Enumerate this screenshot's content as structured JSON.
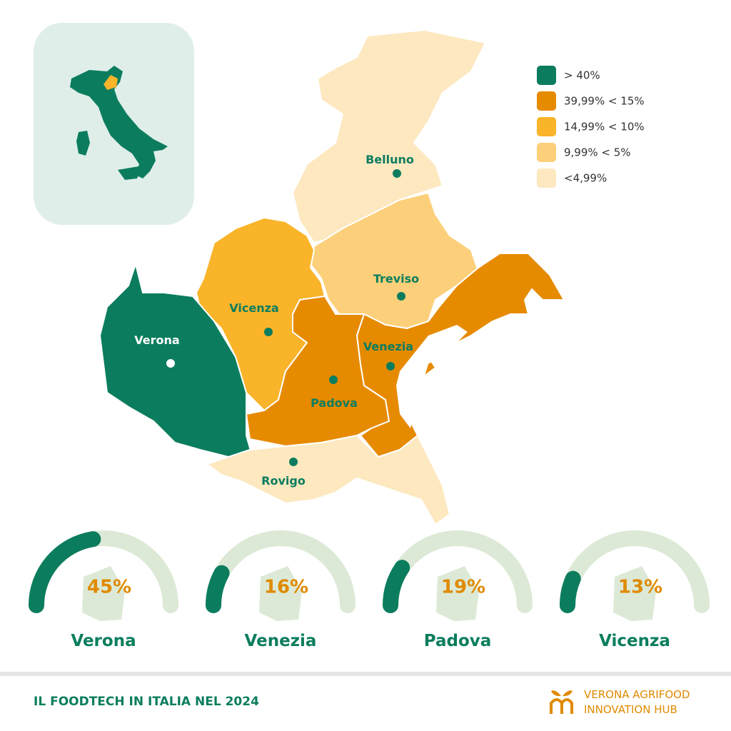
{
  "map": {
    "legend": [
      {
        "label": "> 40%",
        "color": "#0b7d5e"
      },
      {
        "label": "39,99% < 15%",
        "color": "#e68a00"
      },
      {
        "label": "14,99% < 10%",
        "color": "#f9b42a"
      },
      {
        "label": "9,99% < 5%",
        "color": "#fcd07a"
      },
      {
        "label": "<4,99%",
        "color": "#fde8c0"
      }
    ],
    "regions": [
      {
        "name": "Belluno",
        "color": "#fde8c0"
      },
      {
        "name": "Treviso",
        "color": "#fcd07a"
      },
      {
        "name": "Vicenza",
        "color": "#f9b42a"
      },
      {
        "name": "Verona",
        "color": "#0b7d5e"
      },
      {
        "name": "Padova",
        "color": "#e68a00"
      },
      {
        "name": "Venezia",
        "color": "#e68a00"
      },
      {
        "name": "Rovigo",
        "color": "#fde8c0"
      }
    ]
  },
  "gauges": {
    "names": [
      "Verona",
      "Venezia",
      "Padova",
      "Vicenza"
    ],
    "values": [
      45,
      16,
      19,
      13
    ],
    "value_labels": [
      "45%",
      "16%",
      "19%",
      "13%"
    ],
    "ylim": [
      0,
      100
    ],
    "color": "#0b7d5e"
  },
  "footer": {
    "title": "IL FOODTECH IN ITALIA NEL 2024",
    "brand": [
      "VERONA AGRIFOOD",
      "INNOVATION HUB"
    ]
  }
}
